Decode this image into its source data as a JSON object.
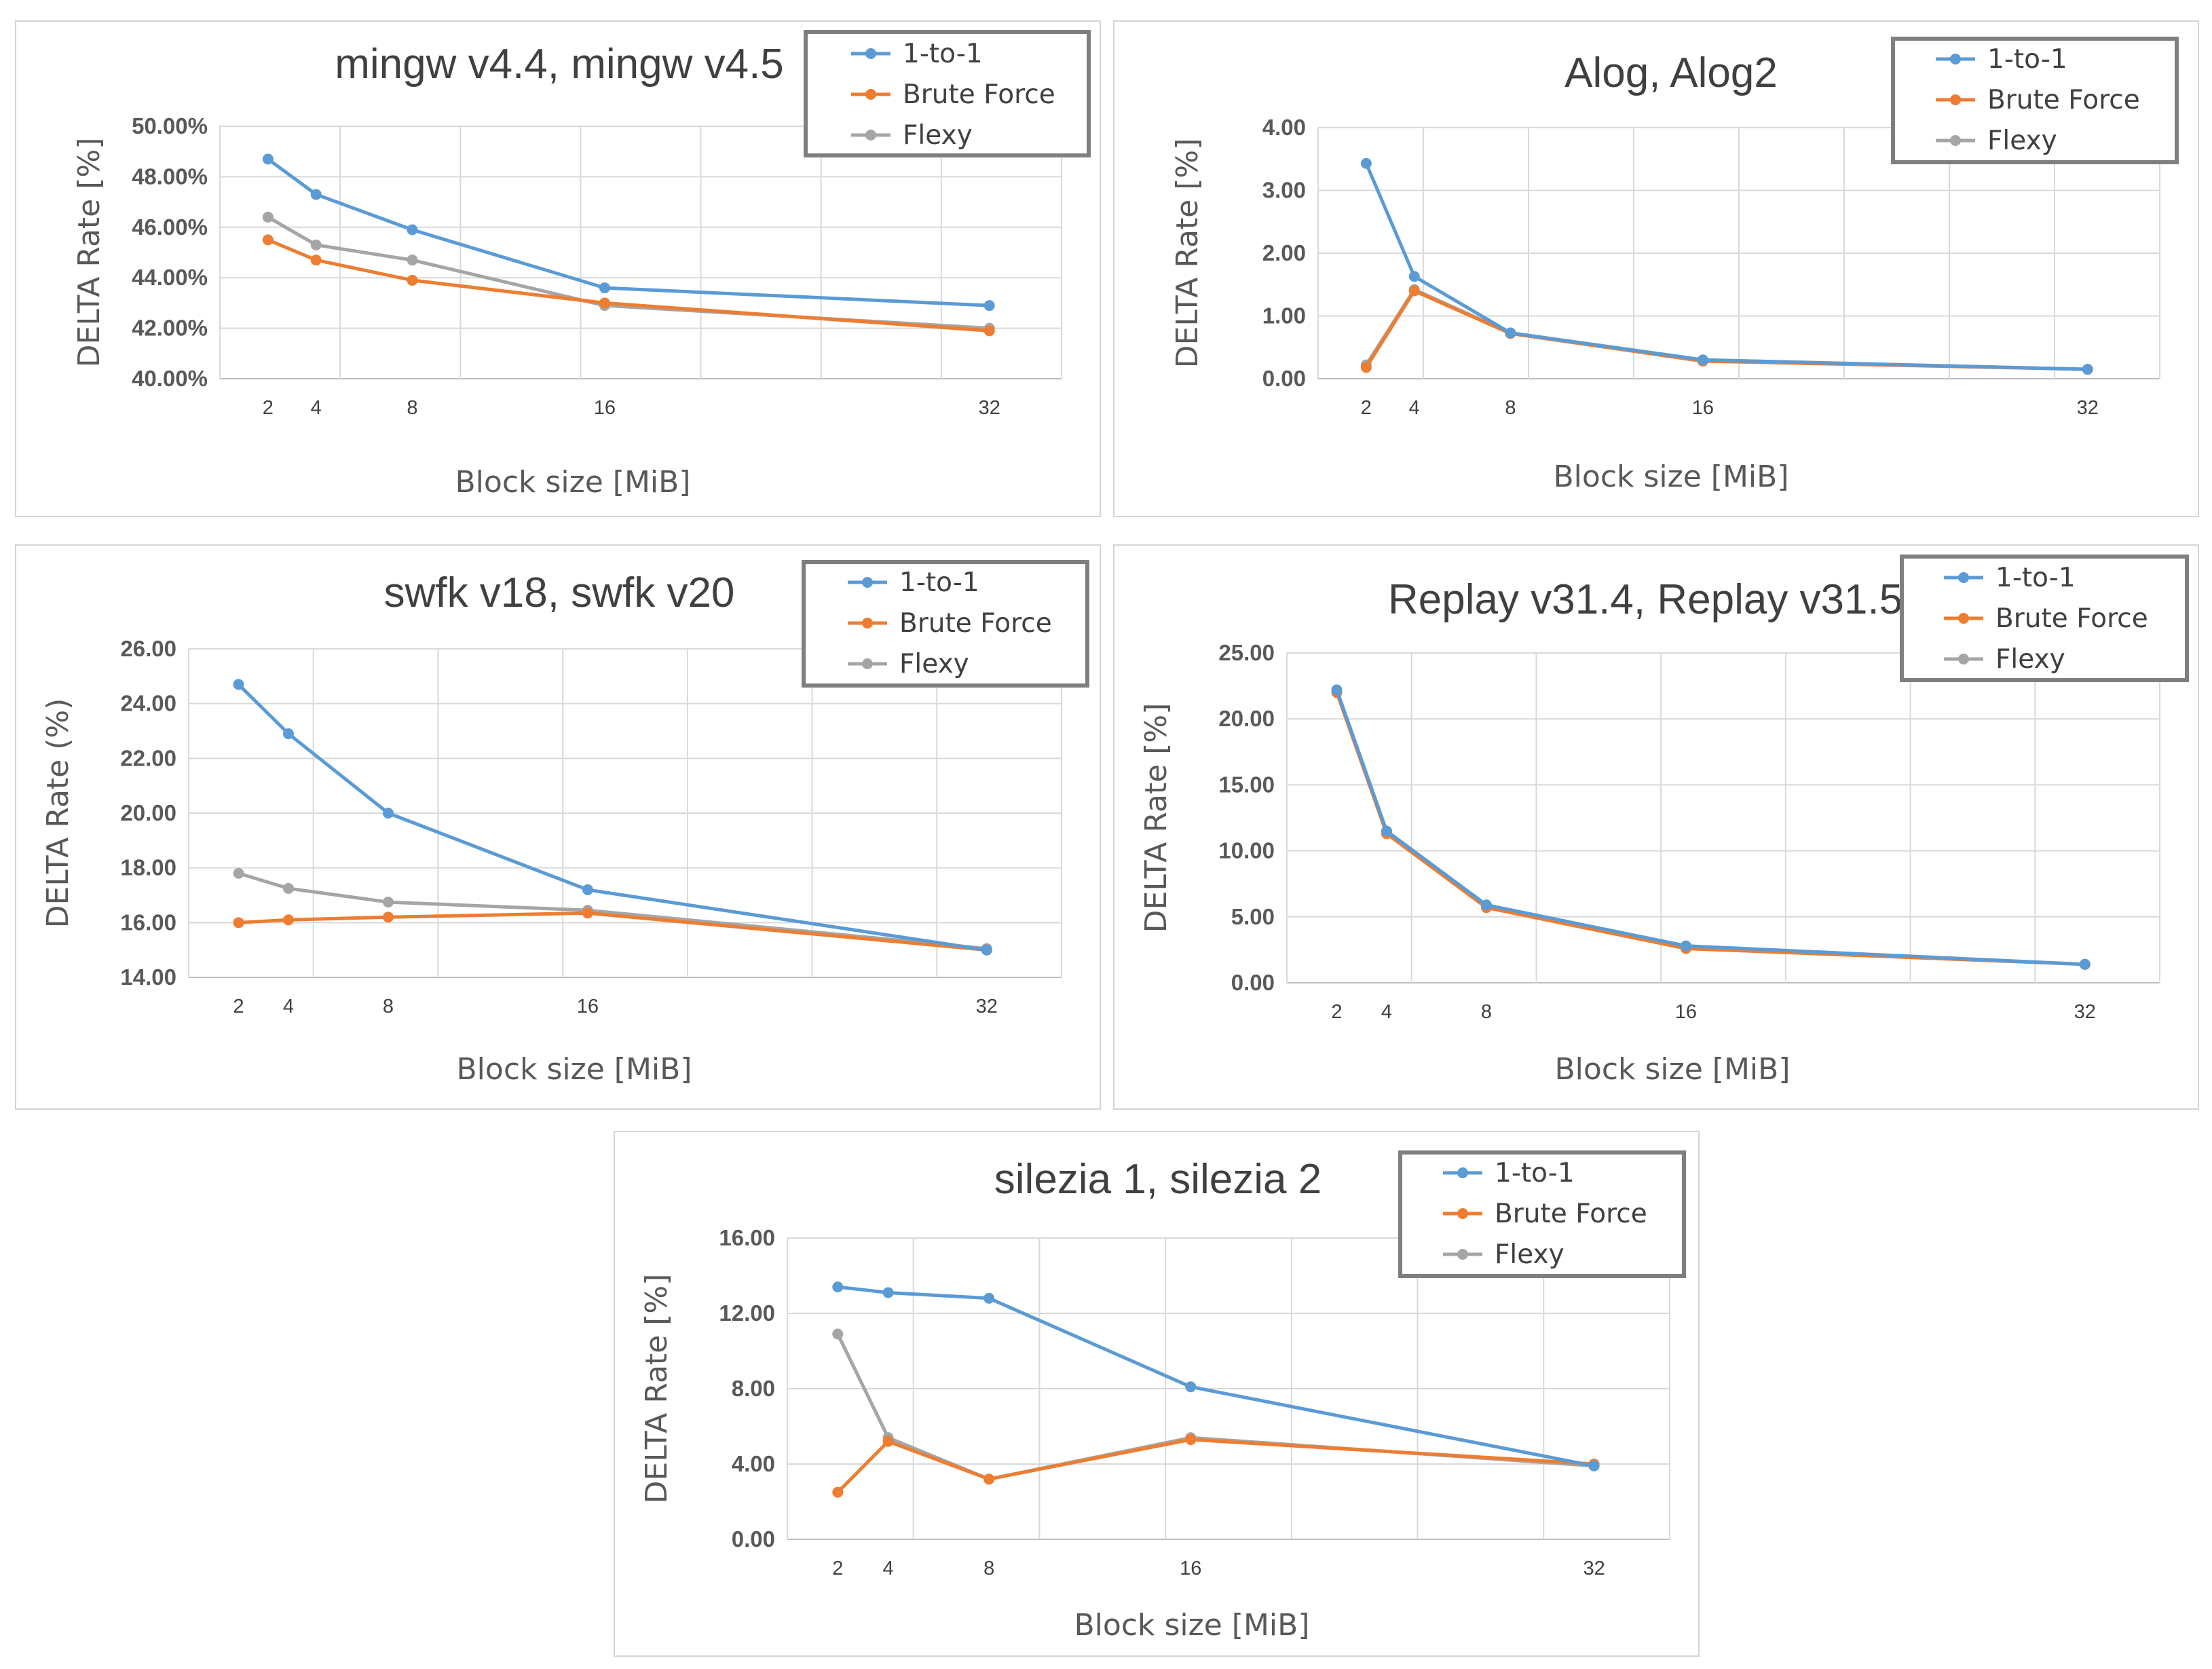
{
  "colors": {
    "one_to_one": "#5b9bd5",
    "brute_force": "#ed7d31",
    "flexy": "#a5a5a5"
  },
  "chart_data": [
    {
      "type": "line",
      "title": "mingw v4.4, mingw v4.5",
      "xlabel": "Block size [MiB]",
      "ylabel": "DELTA Rate [%]",
      "x": [
        2,
        4,
        8,
        16,
        32
      ],
      "xticks": [
        "2",
        "4",
        "8",
        "16",
        "32"
      ],
      "xlim": [
        0,
        35
      ],
      "ylim": [
        40,
        50
      ],
      "yticks": [
        "40.00%",
        "42.00%",
        "44.00%",
        "46.00%",
        "48.00%",
        "50.00%"
      ],
      "series": [
        {
          "name": "1-to-1",
          "values": [
            48.7,
            47.3,
            45.9,
            43.6,
            42.9
          ]
        },
        {
          "name": "Brute Force",
          "values": [
            45.5,
            44.7,
            43.9,
            43.0,
            41.9
          ]
        },
        {
          "name": "Flexy",
          "values": [
            46.4,
            45.3,
            44.7,
            42.9,
            42.0
          ]
        }
      ],
      "legend": "top-right"
    },
    {
      "type": "line",
      "title": "Alog, Alog2",
      "xlabel": "Block size [MiB]",
      "ylabel": "DELTA Rate [%]",
      "x": [
        2,
        4,
        8,
        16,
        32
      ],
      "xticks": [
        "2",
        "4",
        "8",
        "16",
        "32"
      ],
      "xlim": [
        0,
        35
      ],
      "ylim": [
        0,
        4
      ],
      "yticks": [
        "0.00",
        "1.00",
        "2.00",
        "3.00",
        "4.00"
      ],
      "series": [
        {
          "name": "1-to-1",
          "values": [
            3.43,
            1.63,
            0.73,
            0.3,
            0.15
          ]
        },
        {
          "name": "Brute Force",
          "values": [
            0.18,
            1.4,
            0.72,
            0.28,
            0.15
          ]
        },
        {
          "name": "Flexy",
          "values": [
            0.22,
            1.42,
            0.73,
            0.3,
            0.15
          ]
        }
      ],
      "legend": "top-right"
    },
    {
      "type": "line",
      "title": "swfk v18, swfk v20",
      "xlabel": "Block size [MiB]",
      "ylabel": "DELTA Rate (%)",
      "x": [
        2,
        4,
        8,
        16,
        32
      ],
      "xticks": [
        "2",
        "4",
        "8",
        "16",
        "32"
      ],
      "xlim": [
        0,
        35
      ],
      "ylim": [
        14,
        26
      ],
      "yticks": [
        "14.00",
        "16.00",
        "18.00",
        "20.00",
        "22.00",
        "24.00",
        "26.00"
      ],
      "series": [
        {
          "name": "1-to-1",
          "values": [
            24.7,
            22.9,
            20.0,
            17.2,
            15.0
          ]
        },
        {
          "name": "Brute Force",
          "values": [
            16.0,
            16.1,
            16.2,
            16.35,
            15.0
          ]
        },
        {
          "name": "Flexy",
          "values": [
            17.8,
            17.25,
            16.75,
            16.45,
            15.05
          ]
        }
      ],
      "legend": "top-right"
    },
    {
      "type": "line",
      "title": "Replay v31.4, Replay v31.5",
      "xlabel": "Block size [MiB]",
      "ylabel": "DELTA Rate [%]",
      "x": [
        2,
        4,
        8,
        16,
        32
      ],
      "xticks": [
        "2",
        "4",
        "8",
        "16",
        "32"
      ],
      "xlim": [
        0,
        35
      ],
      "ylim": [
        0,
        25
      ],
      "yticks": [
        "0.00",
        "5.00",
        "10.00",
        "15.00",
        "20.00",
        "25.00"
      ],
      "series": [
        {
          "name": "1-to-1",
          "values": [
            22.2,
            11.5,
            5.9,
            2.8,
            1.4
          ]
        },
        {
          "name": "Brute Force",
          "values": [
            22.0,
            11.3,
            5.7,
            2.6,
            1.4
          ]
        },
        {
          "name": "Flexy",
          "values": [
            22.1,
            11.4,
            5.8,
            2.6,
            1.4
          ]
        }
      ],
      "legend": "top-right"
    },
    {
      "type": "line",
      "title": "silezia 1, silezia 2",
      "xlabel": "Block size [MiB]",
      "ylabel": "DELTA Rate [%]",
      "x": [
        2,
        4,
        8,
        16,
        32
      ],
      "xticks": [
        "2",
        "4",
        "8",
        "16",
        "32"
      ],
      "xlim": [
        0,
        35
      ],
      "ylim": [
        0,
        16
      ],
      "yticks": [
        "0.00",
        "4.00",
        "8.00",
        "12.00",
        "16.00"
      ],
      "series": [
        {
          "name": "1-to-1",
          "values": [
            13.4,
            13.1,
            12.8,
            8.1,
            3.9
          ]
        },
        {
          "name": "Brute Force",
          "values": [
            2.5,
            5.2,
            3.2,
            5.3,
            4.0
          ]
        },
        {
          "name": "Flexy",
          "values": [
            10.9,
            5.4,
            3.2,
            5.4,
            3.9
          ]
        }
      ],
      "legend": "top-right"
    }
  ]
}
